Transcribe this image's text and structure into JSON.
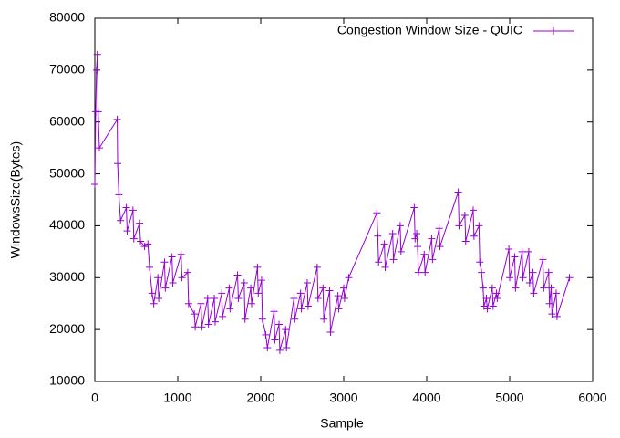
{
  "chart_data": {
    "type": "line",
    "xlabel": "Sample",
    "ylabel": "WindowsSize(Bytes)",
    "xlim": [
      0,
      6000
    ],
    "xticks": [
      0,
      1000,
      2000,
      3000,
      4000,
      5000,
      6000
    ],
    "ylim": [
      10000,
      80000
    ],
    "yticks": [
      10000,
      20000,
      30000,
      40000,
      50000,
      60000,
      70000,
      80000
    ],
    "grid": false,
    "legend": "top-right",
    "markers": true,
    "x": [
      0,
      10,
      20,
      30,
      40,
      55,
      270,
      275,
      290,
      310,
      380,
      390,
      460,
      470,
      540,
      550,
      600,
      640,
      660,
      690,
      710,
      760,
      770,
      840,
      850,
      930,
      940,
      1040,
      1050,
      1120,
      1130,
      1200,
      1210,
      1280,
      1290,
      1360,
      1370,
      1440,
      1450,
      1530,
      1540,
      1620,
      1630,
      1720,
      1730,
      1800,
      1810,
      1880,
      1890,
      1960,
      1970,
      2010,
      2020,
      2060,
      2080,
      2160,
      2170,
      2220,
      2230,
      2300,
      2310,
      2400,
      2410,
      2480,
      2490,
      2560,
      2570,
      2680,
      2690,
      2750,
      2760,
      2830,
      2840,
      2930,
      2940,
      3000,
      3010,
      3060,
      3400,
      3410,
      3420,
      3490,
      3500,
      3590,
      3600,
      3680,
      3690,
      3850,
      3860,
      3880,
      3890,
      3900,
      3970,
      3980,
      4060,
      4070,
      4150,
      4160,
      4380,
      4390,
      4460,
      4470,
      4560,
      4570,
      4630,
      4640,
      4660,
      4680,
      4690,
      4720,
      4730,
      4790,
      4800,
      4840,
      4850,
      4990,
      5000,
      5060,
      5070,
      5150,
      5160,
      5230,
      5240,
      5280,
      5290,
      5400,
      5410,
      5470,
      5480,
      5500,
      5510,
      5560,
      5570,
      5720
    ],
    "series": [
      {
        "name": "Congestion Window Size - QUIC",
        "color": "#9400d3",
        "values": [
          48000,
          62000,
          70000,
          73000,
          62000,
          55000,
          60500,
          52000,
          46000,
          41000,
          43500,
          39000,
          43000,
          37500,
          40500,
          37000,
          36000,
          36500,
          32000,
          27000,
          25000,
          30000,
          26000,
          33000,
          28000,
          34000,
          29000,
          34500,
          30000,
          31000,
          25000,
          23000,
          20500,
          25000,
          20500,
          26000,
          21000,
          26000,
          21500,
          27000,
          22500,
          28000,
          24000,
          30500,
          26000,
          29000,
          22000,
          28000,
          25000,
          32000,
          27000,
          29500,
          22000,
          19000,
          16500,
          23500,
          18000,
          21000,
          16000,
          20000,
          16500,
          26000,
          22000,
          27000,
          24000,
          29000,
          24500,
          32000,
          26000,
          28000,
          22000,
          27500,
          19500,
          26500,
          24000,
          28000,
          26000,
          30000,
          42500,
          38000,
          33000,
          36500,
          32000,
          38500,
          33500,
          40000,
          35000,
          43500,
          37500,
          38500,
          36000,
          31000,
          34500,
          31000,
          37500,
          33500,
          39500,
          36000,
          46500,
          40000,
          42000,
          37000,
          43000,
          38000,
          40000,
          33000,
          31000,
          28000,
          24500,
          26000,
          24000,
          28000,
          24500,
          27000,
          26000,
          35500,
          30000,
          34000,
          28000,
          35000,
          30000,
          35000,
          29000,
          31000,
          27000,
          33500,
          28000,
          31000,
          25000,
          28000,
          23000,
          27000,
          22500,
          30000
        ]
      }
    ]
  }
}
